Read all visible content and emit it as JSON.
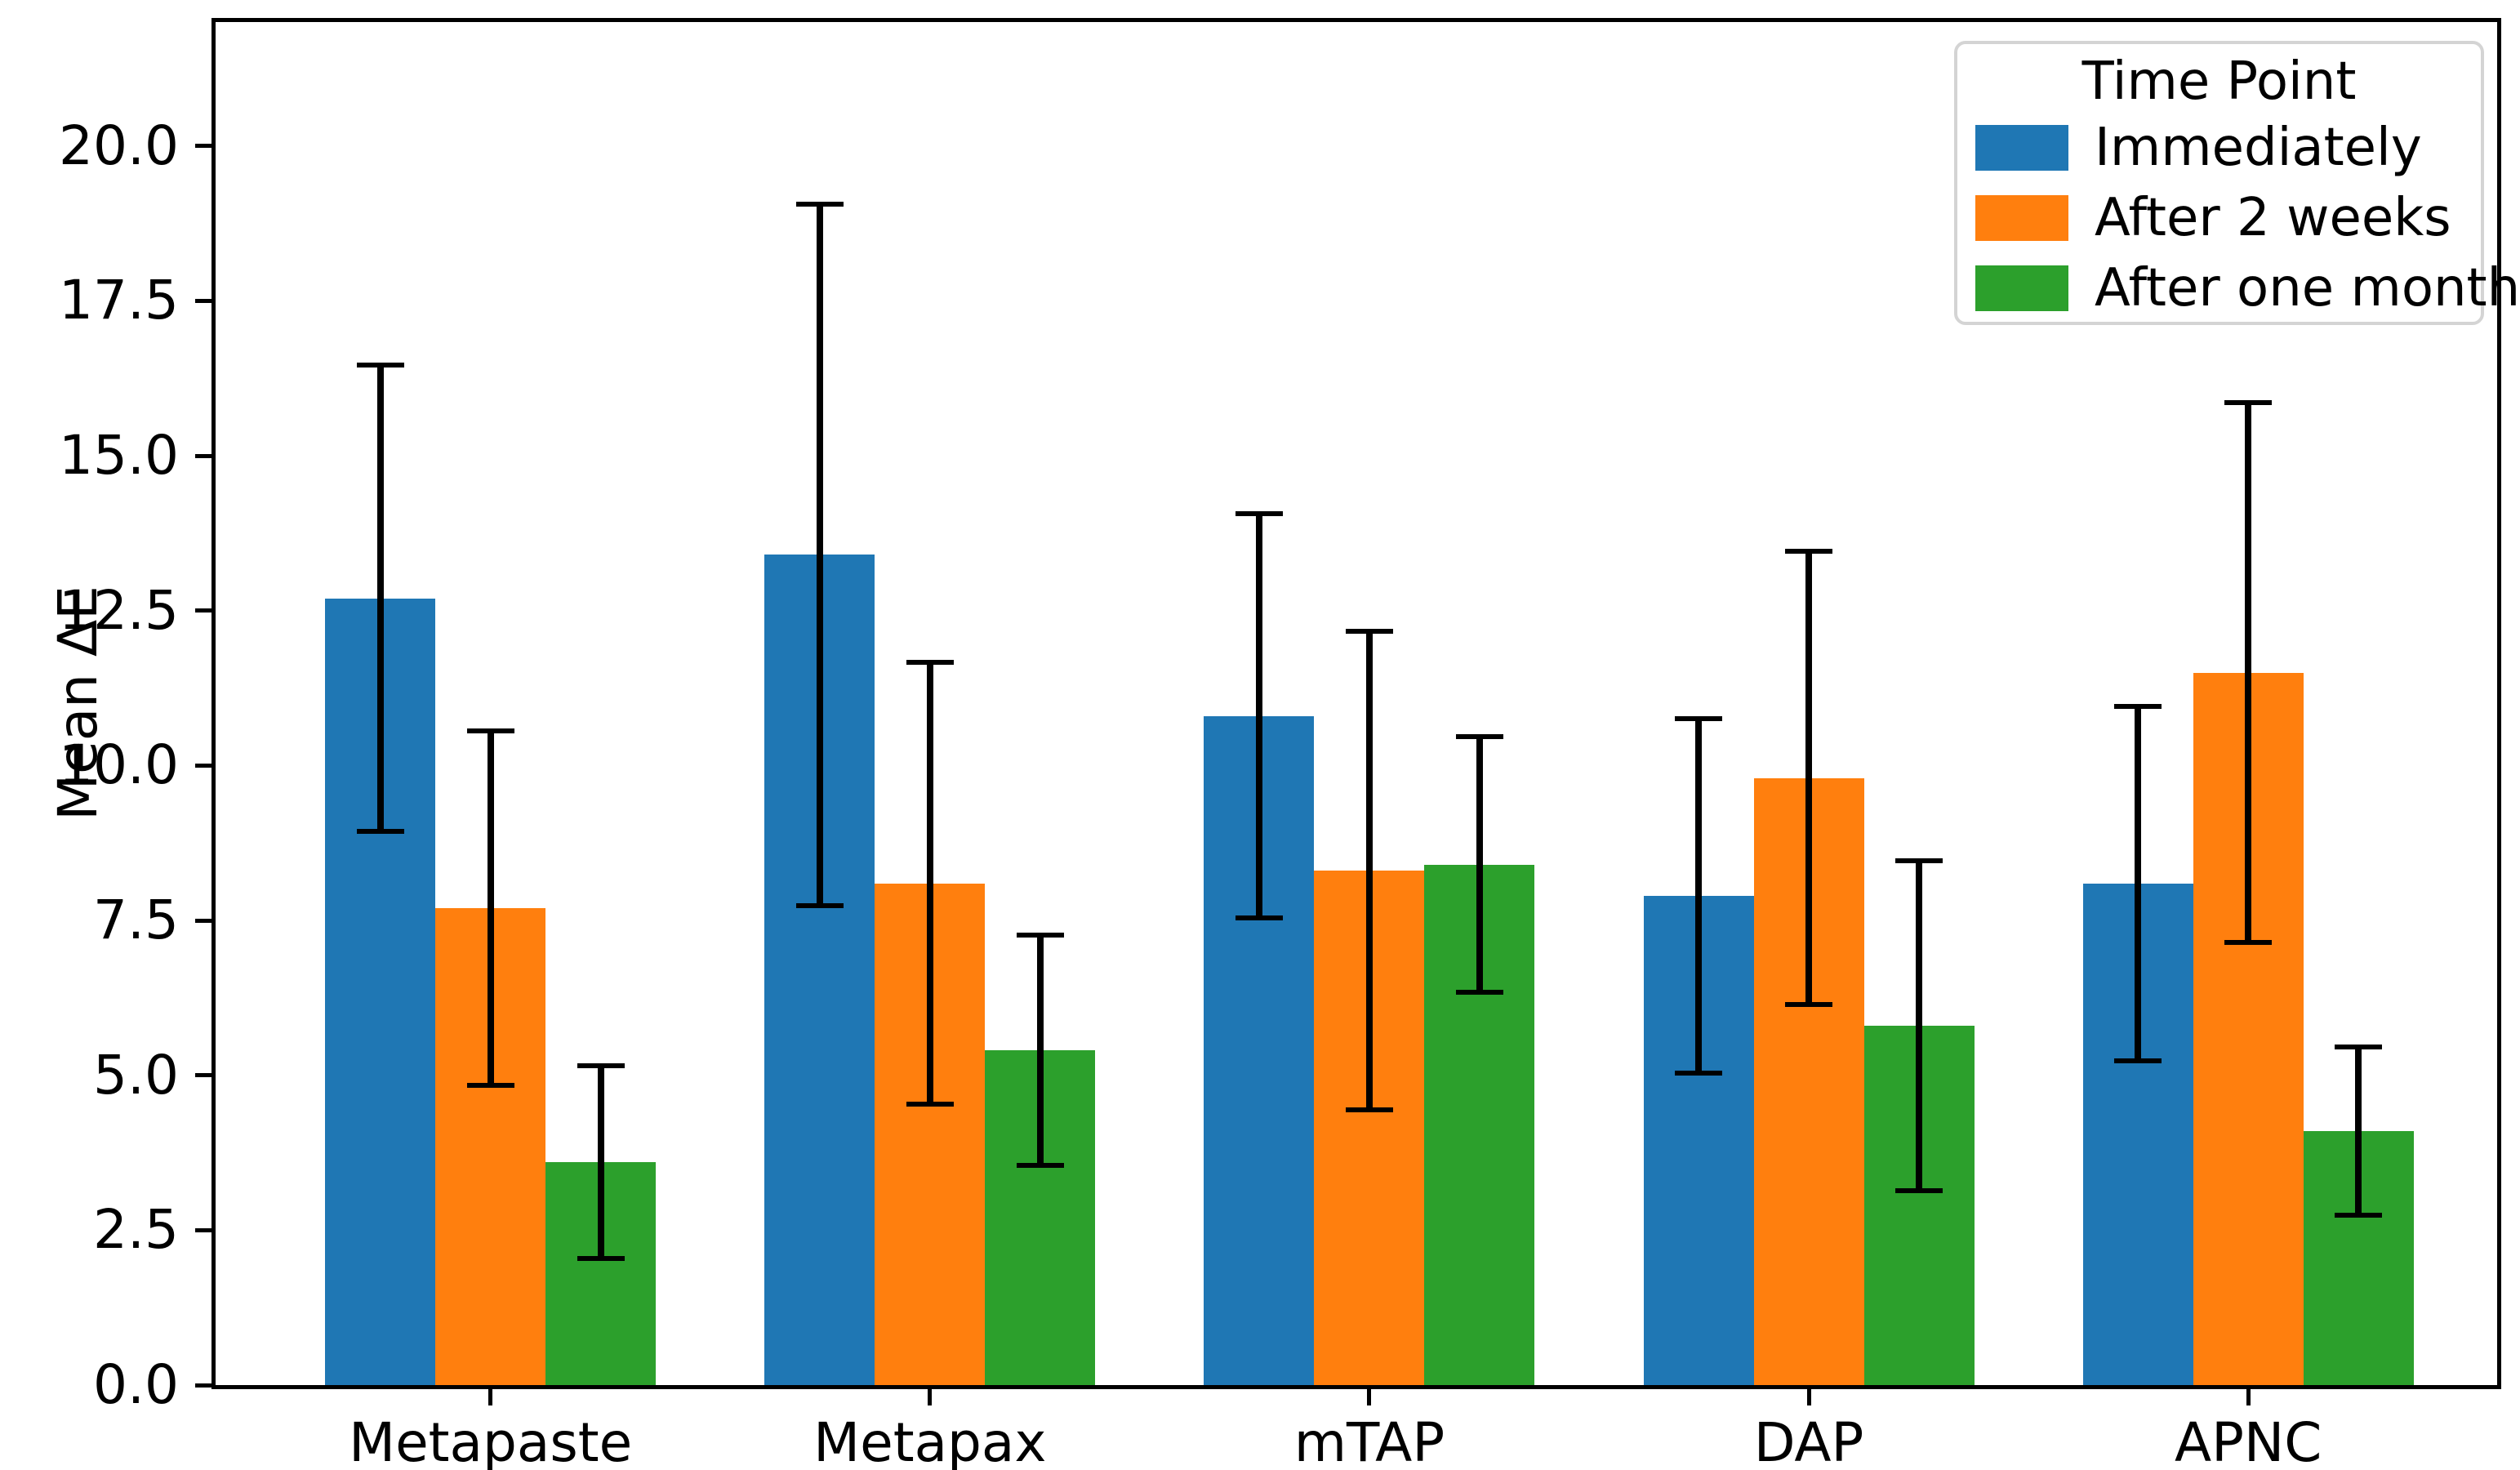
{
  "figure": {
    "background": "#ffffff",
    "text_color": "#000000"
  },
  "chart_data": {
    "type": "bar",
    "title": "",
    "xlabel": "",
    "ylabel": "Mean ΔE",
    "ylim": [
      0,
      22
    ],
    "yticks": [
      0.0,
      2.5,
      5.0,
      7.5,
      10.0,
      12.5,
      15.0,
      17.5,
      20.0
    ],
    "ytick_labels": [
      "0.0",
      "2.5",
      "5.0",
      "7.5",
      "10.0",
      "12.5",
      "15.0",
      "17.5",
      "20.0"
    ],
    "categories": [
      "Metapaste",
      "Metapax",
      "mTAP",
      "DAP",
      "APNC"
    ],
    "grid": false,
    "legend_title": "Time Point",
    "legend_position": "upper right",
    "error_bar_color": "#000000",
    "series": [
      {
        "name": "Immediately",
        "color": "#1f77b4",
        "values": [
          12.7,
          13.4,
          10.8,
          7.9,
          8.1
        ],
        "error_low": [
          8.9,
          7.7,
          7.5,
          5.0,
          5.2
        ],
        "error_high": [
          16.5,
          19.1,
          14.1,
          10.8,
          11.0
        ]
      },
      {
        "name": "After 2 weeks",
        "color": "#ff7f0e",
        "values": [
          7.7,
          8.1,
          8.3,
          9.8,
          11.5
        ],
        "error_low": [
          4.8,
          4.5,
          4.4,
          6.1,
          7.1
        ],
        "error_high": [
          10.6,
          11.7,
          12.2,
          13.5,
          15.9
        ]
      },
      {
        "name": "After one month",
        "color": "#2ca02c",
        "values": [
          3.6,
          5.4,
          8.4,
          5.8,
          4.1
        ],
        "error_low": [
          2.0,
          3.5,
          6.3,
          3.1,
          2.7
        ],
        "error_high": [
          5.2,
          7.3,
          10.5,
          8.5,
          5.5
        ]
      }
    ]
  }
}
